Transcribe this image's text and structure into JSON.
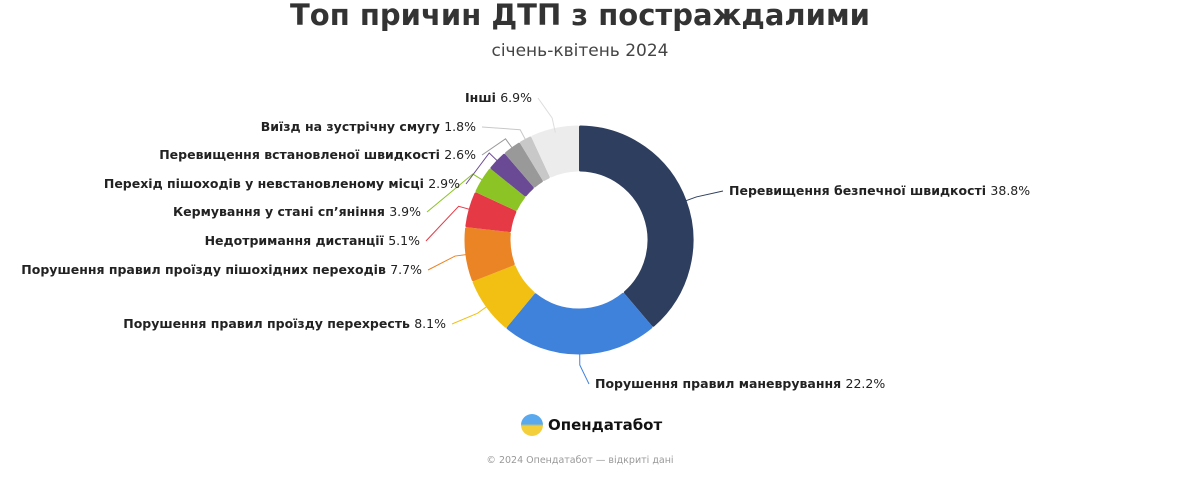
{
  "chart_data": {
    "type": "pie",
    "variant": "donut",
    "title": "Топ причин ДТП з постраждалими",
    "subtitle": "січень-квітень 2024",
    "unit": "%",
    "slices": [
      {
        "label": "Перевищення безпечної швидкості",
        "value": 38.8,
        "color": "#2e3e5f"
      },
      {
        "label": "Порушення правил маневрування",
        "value": 22.2,
        "color": "#3f82dc"
      },
      {
        "label": "Порушення правил проїзду перехресть",
        "value": 8.1,
        "color": "#f2c012"
      },
      {
        "label": "Порушення правил проїзду пішохідних переходів",
        "value": 7.7,
        "color": "#ea8424"
      },
      {
        "label": "Недотримання дистанції",
        "value": 5.1,
        "color": "#e53a46"
      },
      {
        "label": "Кермування у стані сп’яніння",
        "value": 3.9,
        "color": "#8cc426"
      },
      {
        "label": "Перехід пішоходів у невстановленому місці",
        "value": 2.9,
        "color": "#6a4a94"
      },
      {
        "label": "Перевищення встановленої швидкості",
        "value": 2.6,
        "color": "#999999"
      },
      {
        "label": "Виїзд на зустрічну смугу",
        "value": 1.8,
        "color": "#c8c8c8"
      },
      {
        "label": "Інші",
        "value": 6.9,
        "color": "#ececec"
      }
    ]
  },
  "branding": {
    "name": "Опендатабот"
  },
  "footer": "© 2024 Опендатабот — відкриті дані"
}
